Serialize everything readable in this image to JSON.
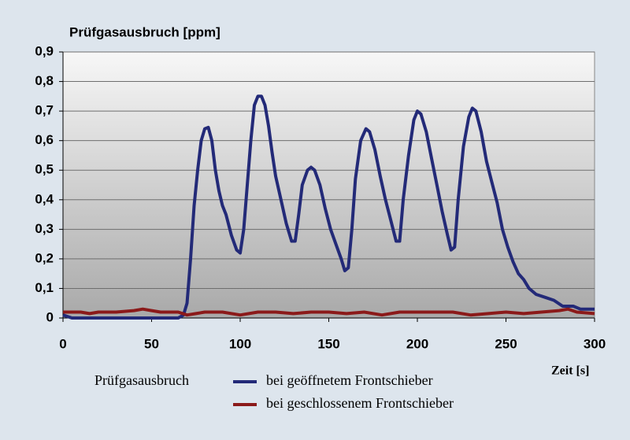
{
  "chart_data": {
    "type": "line",
    "title": "Prüfgasausbruch [ppm]",
    "xlabel": "Zeit [s]",
    "legend_title": "Prüfgasausbruch",
    "xlim": [
      0,
      300
    ],
    "xticks": [
      0,
      50,
      100,
      150,
      200,
      250,
      300
    ],
    "ylim": [
      0,
      0.9
    ],
    "yticks": [
      0,
      {
        "value": 0.1,
        "label": "0,1"
      },
      {
        "value": 0.2,
        "label": "0,2"
      },
      {
        "value": 0.3,
        "label": "0,3"
      },
      {
        "value": 0.4,
        "label": "0,4"
      },
      {
        "value": 0.5,
        "label": "0,5"
      },
      {
        "value": 0.6,
        "label": "0,6"
      },
      {
        "value": 0.7,
        "label": "0,7"
      },
      {
        "value": 0.8,
        "label": "0,8"
      },
      {
        "value": 0.9,
        "label": "0,9"
      }
    ],
    "grid": true,
    "series": [
      {
        "name": "bei geöffnetem Frontschieber",
        "color": "#232a78",
        "x": [
          0,
          5,
          10,
          20,
          30,
          40,
          50,
          60,
          65,
          68,
          70,
          72,
          74,
          76,
          78,
          80,
          82,
          84,
          86,
          88,
          90,
          92,
          95,
          98,
          100,
          102,
          104,
          106,
          108,
          110,
          112,
          114,
          116,
          118,
          120,
          123,
          126,
          129,
          131,
          133,
          135,
          138,
          140,
          142,
          145,
          148,
          151,
          154,
          157,
          159,
          161,
          163,
          165,
          168,
          171,
          173,
          176,
          179,
          182,
          185,
          188,
          190,
          192,
          195,
          198,
          200,
          202,
          205,
          208,
          211,
          214,
          217,
          219,
          221,
          223,
          226,
          229,
          231,
          233,
          236,
          239,
          242,
          245,
          248,
          251,
          254,
          257,
          260,
          263,
          267,
          272,
          277,
          282,
          288,
          292,
          297,
          300
        ],
        "values": [
          0.01,
          0,
          0,
          0,
          0,
          0,
          0,
          0,
          0,
          0.01,
          0.05,
          0.2,
          0.38,
          0.5,
          0.6,
          0.64,
          0.645,
          0.6,
          0.5,
          0.43,
          0.38,
          0.35,
          0.28,
          0.23,
          0.22,
          0.3,
          0.45,
          0.6,
          0.72,
          0.75,
          0.75,
          0.72,
          0.65,
          0.56,
          0.48,
          0.4,
          0.32,
          0.26,
          0.26,
          0.35,
          0.45,
          0.5,
          0.51,
          0.5,
          0.45,
          0.37,
          0.3,
          0.25,
          0.2,
          0.16,
          0.17,
          0.3,
          0.47,
          0.6,
          0.64,
          0.63,
          0.57,
          0.48,
          0.4,
          0.33,
          0.26,
          0.26,
          0.4,
          0.55,
          0.67,
          0.7,
          0.69,
          0.63,
          0.54,
          0.45,
          0.36,
          0.28,
          0.23,
          0.24,
          0.4,
          0.58,
          0.68,
          0.71,
          0.7,
          0.63,
          0.53,
          0.46,
          0.39,
          0.3,
          0.24,
          0.19,
          0.15,
          0.13,
          0.1,
          0.08,
          0.07,
          0.06,
          0.04,
          0.04,
          0.03,
          0.03,
          0.03
        ]
      },
      {
        "name": "bei geschlossenem Frontschieber",
        "color": "#8b1a1a",
        "x": [
          0,
          10,
          15,
          20,
          30,
          40,
          45,
          50,
          55,
          65,
          70,
          75,
          80,
          90,
          100,
          110,
          120,
          130,
          140,
          150,
          160,
          170,
          180,
          190,
          200,
          210,
          220,
          230,
          240,
          250,
          260,
          270,
          280,
          285,
          290,
          300
        ],
        "values": [
          0.02,
          0.02,
          0.015,
          0.02,
          0.02,
          0.025,
          0.03,
          0.025,
          0.02,
          0.02,
          0.01,
          0.015,
          0.02,
          0.02,
          0.01,
          0.02,
          0.02,
          0.015,
          0.02,
          0.02,
          0.015,
          0.02,
          0.01,
          0.02,
          0.02,
          0.02,
          0.02,
          0.01,
          0.015,
          0.02,
          0.015,
          0.02,
          0.025,
          0.03,
          0.02,
          0.015
        ]
      }
    ]
  }
}
